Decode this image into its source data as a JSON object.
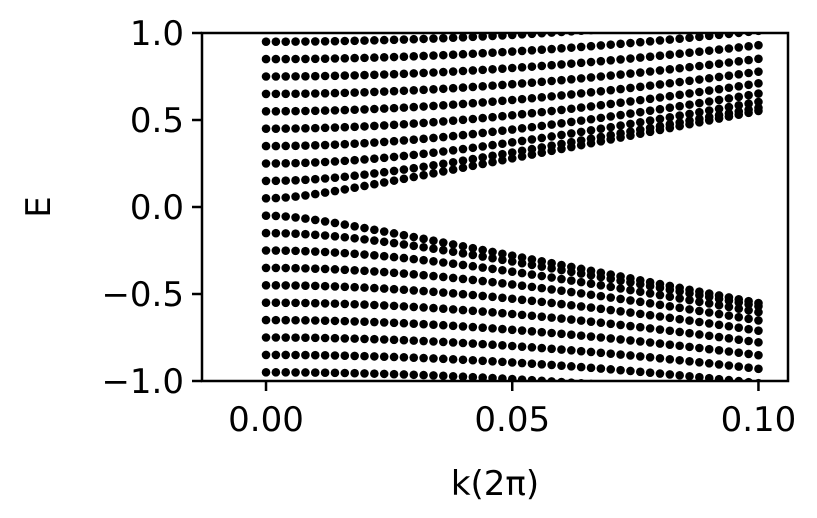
{
  "chart_data": {
    "type": "scatter",
    "title": "",
    "xlabel": "k(2π)",
    "ylabel": "E",
    "xlim": [
      -0.013,
      0.106
    ],
    "ylim": [
      -1.0,
      1.0
    ],
    "xticks": [
      {
        "value": 0.0,
        "label": "0.00"
      },
      {
        "value": 0.05,
        "label": "0.05"
      },
      {
        "value": 0.1,
        "label": "0.10"
      }
    ],
    "yticks": [
      {
        "value": 1.0,
        "label": "1.0"
      },
      {
        "value": 0.5,
        "label": "0.5"
      },
      {
        "value": 0.0,
        "label": "0.0"
      },
      {
        "value": -0.5,
        "label": "−0.5"
      },
      {
        "value": -1.0,
        "label": "−1.0"
      }
    ],
    "grid": false,
    "legend": false,
    "marker_color": "#000000",
    "k_range": [
      0.0,
      0.1
    ],
    "k_samples": 51,
    "gap_at_k0": 0.05,
    "level_spacing_at_k0": 0.1,
    "band_slope": 5.5
  }
}
